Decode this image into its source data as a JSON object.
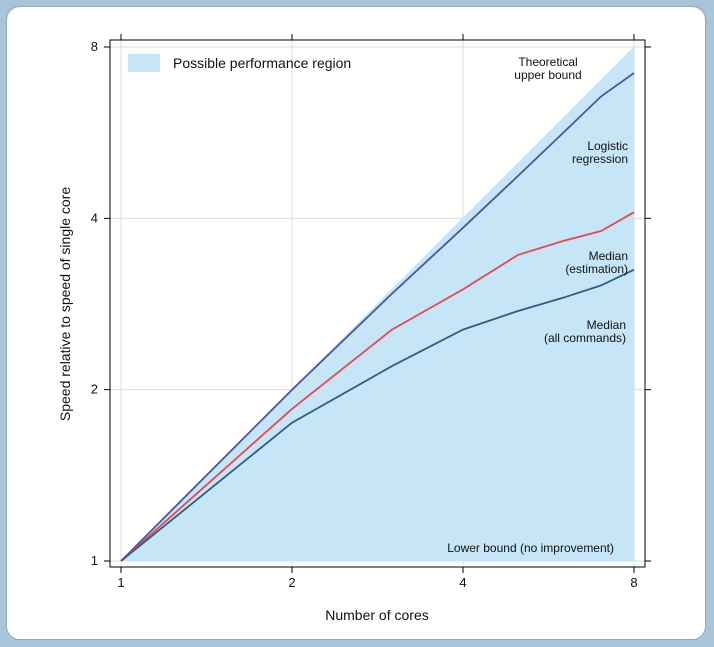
{
  "chart_data": {
    "type": "line",
    "title": "",
    "xlabel": "Number of cores",
    "ylabel": "Speed relative to speed of single core",
    "xscale": "log2",
    "yscale": "log2",
    "xlim": [
      1,
      8
    ],
    "ylim": [
      1,
      8
    ],
    "x_ticks": [
      1,
      2,
      4,
      8
    ],
    "y_ticks": [
      1,
      2,
      4,
      8
    ],
    "grid": true,
    "legend": {
      "label": "Possible performance region",
      "placement": "top-left",
      "color": "#c6e6f7"
    },
    "region": {
      "name": "Possible performance region",
      "color": "#c6e6f7",
      "upper": {
        "x": [
          1,
          8
        ],
        "y": [
          1,
          8
        ]
      },
      "lower": {
        "x": [
          1,
          8
        ],
        "y": [
          1,
          1
        ]
      }
    },
    "series": [
      {
        "name": "Theoretical upper bound",
        "label": "Theoretical\nupper bound",
        "color": "#c6e6f7",
        "x": [
          1,
          8
        ],
        "y": [
          1,
          8
        ]
      },
      {
        "name": "Logistic regression",
        "label": "Logistic\nregression",
        "color": "#4a55a2",
        "x": [
          1,
          2,
          3,
          4,
          5,
          6,
          7,
          8
        ],
        "y": [
          1,
          2.0,
          2.95,
          3.85,
          4.75,
          5.65,
          6.55,
          7.2
        ]
      },
      {
        "name": "Median (estimation)",
        "label": "Median\n(estimation)",
        "color": "#e8474e",
        "x": [
          1,
          2,
          3,
          4,
          5,
          6,
          7,
          8
        ],
        "y": [
          1,
          1.85,
          2.55,
          3.0,
          3.45,
          3.65,
          3.8,
          4.1
        ]
      },
      {
        "name": "Median (all commands)",
        "label": "Median\n(all commands)",
        "color": "#2f5e80",
        "x": [
          1,
          2,
          3,
          4,
          5,
          6,
          7,
          8
        ],
        "y": [
          1,
          1.75,
          2.2,
          2.55,
          2.75,
          2.9,
          3.05,
          3.25
        ]
      }
    ],
    "annotations": [
      {
        "text": "Lower bound (no improvement)"
      }
    ]
  }
}
